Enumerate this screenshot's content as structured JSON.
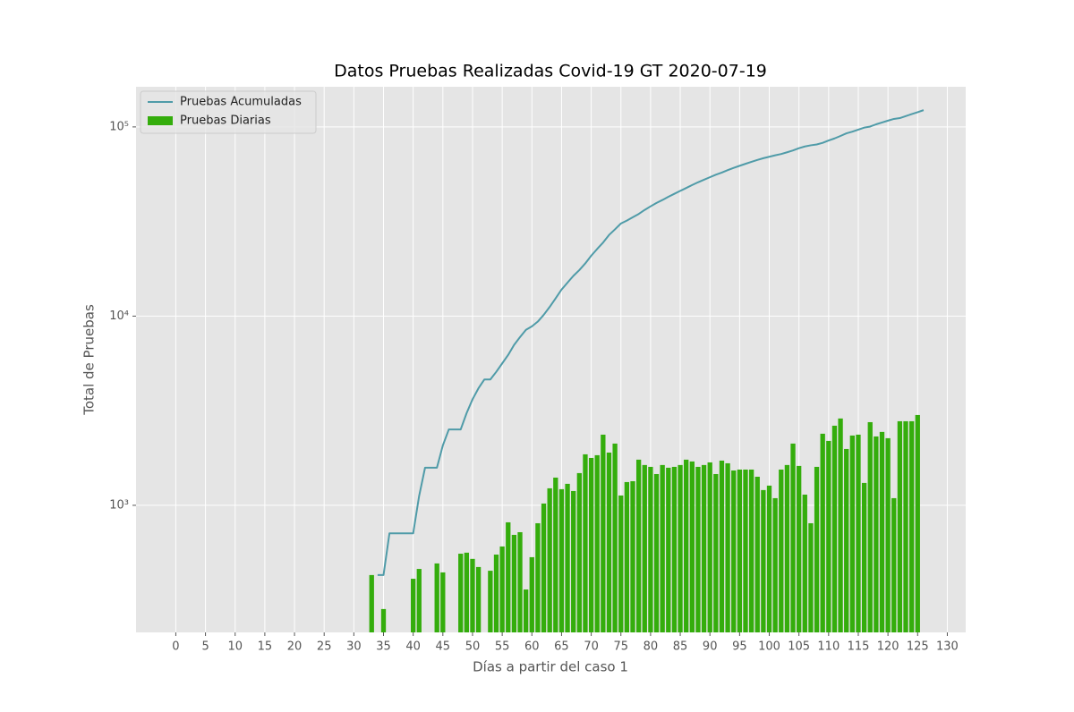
{
  "chart_data": {
    "type": "bar_line",
    "title": "Datos Pruebas Realizadas Covid-19 GT 2020-07-19",
    "xlabel": "Días a partir del caso 1",
    "ylabel": "Total de Pruebas",
    "x": [
      0,
      1,
      2,
      3,
      4,
      5,
      6,
      7,
      8,
      9,
      10,
      11,
      12,
      13,
      14,
      15,
      16,
      17,
      18,
      19,
      20,
      21,
      22,
      23,
      24,
      25,
      26,
      27,
      28,
      29,
      30,
      31,
      32,
      33,
      34,
      35,
      36,
      37,
      38,
      39,
      40,
      41,
      42,
      43,
      44,
      45,
      46,
      47,
      48,
      49,
      50,
      51,
      52,
      53,
      54,
      55,
      56,
      57,
      58,
      59,
      60,
      61,
      62,
      63,
      64,
      65,
      66,
      67,
      68,
      69,
      70,
      71,
      72,
      73,
      74,
      75,
      76,
      77,
      78,
      79,
      80,
      81,
      82,
      83,
      84,
      85,
      86,
      87,
      88,
      89,
      90,
      91,
      92,
      93,
      94,
      95,
      96,
      97,
      98,
      99,
      100,
      101,
      102,
      103,
      104,
      105,
      106,
      107,
      108,
      109,
      110,
      111,
      112,
      113,
      114,
      115,
      116,
      117,
      118,
      119,
      120,
      121,
      122,
      123,
      124,
      125,
      126
    ],
    "series": [
      {
        "name": "Pruebas Acumuladas",
        "kind": "line",
        "color": "#4f9ba8",
        "values": [
          null,
          null,
          null,
          null,
          null,
          null,
          null,
          null,
          null,
          null,
          null,
          null,
          null,
          null,
          null,
          null,
          null,
          null,
          null,
          null,
          null,
          null,
          null,
          null,
          null,
          null,
          null,
          null,
          null,
          null,
          null,
          null,
          null,
          null,
          428,
          428,
          711,
          711,
          711,
          711,
          711,
          1120,
          1581,
          1581,
          1581,
          2074,
          2516,
          2516,
          2516,
          3071,
          3633,
          4154,
          4626,
          4626,
          5077,
          5626,
          6232,
          7045,
          7743,
          8464,
          8823,
          9355,
          10159,
          11181,
          12411,
          13812,
          15029,
          16328,
          17518,
          18998,
          20858,
          22638,
          24478,
          26841,
          28741,
          30861,
          31988,
          33315,
          34656,
          36399,
          38032,
          39629,
          41092,
          42725,
          44305,
          45902,
          47535,
          49278,
          50983,
          52580,
          54213,
          55899,
          57362,
          59085,
          60753,
          62281,
          63826,
          65371,
          66916,
          68332,
          69536,
          70807,
          71898,
          73443,
          75076,
          77196,
          78811,
          79950,
          80754,
          82351,
          84741,
          86931,
          89566,
          92443,
          94428,
          96766,
          99129,
          100442,
          103193,
          105505,
          107948,
          110211,
          111302,
          114084,
          116866,
          119648,
          122650
        ]
      },
      {
        "name": "Pruebas Diarias",
        "kind": "bar",
        "color": "#34ad0c",
        "values": [
          0,
          0,
          0,
          0,
          0,
          0,
          0,
          0,
          0,
          0,
          0,
          0,
          0,
          0,
          0,
          0,
          0,
          0,
          0,
          0,
          0,
          0,
          0,
          0,
          0,
          0,
          0,
          0,
          0,
          0,
          0,
          0,
          0,
          428,
          0,
          283,
          0,
          0,
          0,
          0,
          409,
          461,
          0,
          0,
          493,
          442,
          0,
          0,
          555,
          562,
          521,
          472,
          0,
          451,
          549,
          606,
          813,
          698,
          721,
          359,
          532,
          804,
          1022,
          1230,
          1401,
          1217,
          1299,
          1190,
          1480,
          1860,
          1780,
          1840,
          2363,
          1900,
          2120,
          1127,
          1327,
          1341,
          1743,
          1633,
          1597,
          1463,
          1633,
          1580,
          1597,
          1633,
          1743,
          1705,
          1597,
          1633,
          1686,
          1463,
          1723,
          1668,
          1528,
          1545,
          1545,
          1545,
          1416,
          1204,
          1271,
          1091,
          1545,
          1633,
          2120,
          1615,
          1139,
          804,
          1597,
          2390,
          2190,
          2635,
          2877,
          1985,
          2338,
          2363,
          1313,
          2751,
          2312,
          2443,
          2263,
          1091,
          2782,
          2782,
          2782,
          3002,
          0
        ]
      }
    ],
    "xlim": [
      -6.7,
      133.1
    ],
    "xticks": [
      0,
      5,
      10,
      15,
      20,
      25,
      30,
      35,
      40,
      45,
      50,
      55,
      60,
      65,
      70,
      75,
      80,
      85,
      90,
      95,
      100,
      105,
      110,
      115,
      120,
      125,
      130
    ],
    "ylim": [
      213,
      163000
    ],
    "yscale": "log",
    "yticks": [
      {
        "value": 1000,
        "label": "10³"
      },
      {
        "value": 10000,
        "label": "10⁴"
      },
      {
        "value": 100000,
        "label": "10⁵"
      }
    ],
    "grid": true,
    "legend": "upper left"
  }
}
